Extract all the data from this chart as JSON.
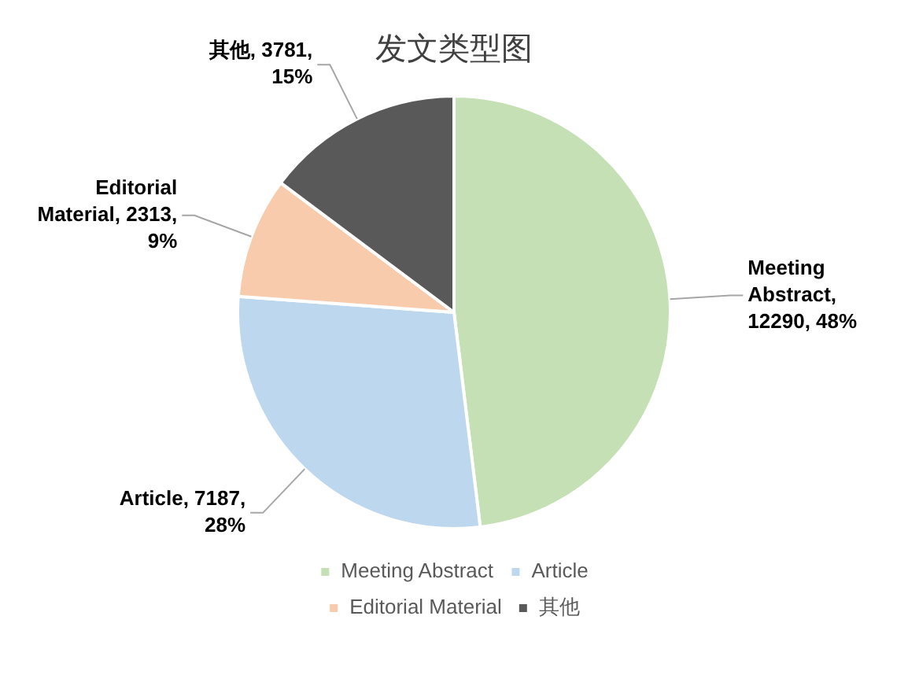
{
  "chart_data": {
    "type": "pie",
    "title": "发文类型图",
    "categories": [
      "Meeting Abstract",
      "Article",
      "Editorial Material",
      "其他"
    ],
    "values": [
      12290,
      7187,
      2313,
      3781
    ],
    "colors": [
      "#c5e0b4",
      "#bdd7ee",
      "#f8cbad",
      "#595959"
    ],
    "value_labels": [
      "Meeting Abstract, 12290, 48%",
      "Article, 7187, 28%",
      "Editorial Material, 2313, 9%",
      "其他, 3781, 15%"
    ],
    "legend": "bottom"
  }
}
